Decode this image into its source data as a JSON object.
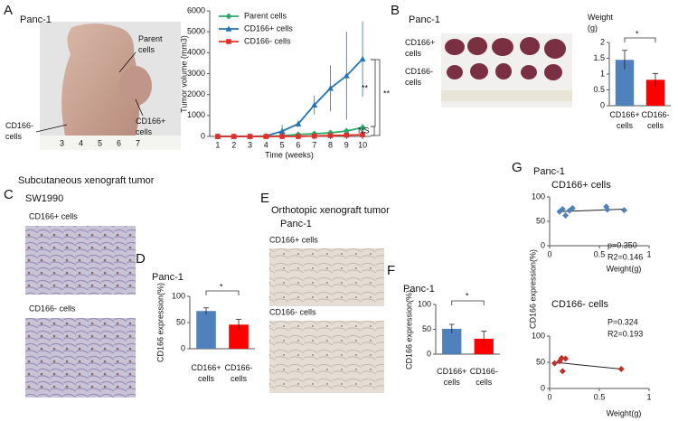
{
  "panels": {
    "A": {
      "letter": "A",
      "title": "Panc-1",
      "labels": [
        "Parent cells",
        "CD166- cells",
        "CD166+ cells"
      ],
      "ruler": [
        "3",
        "4",
        "5",
        "6",
        "7"
      ]
    },
    "B": {
      "letter": "B",
      "title": "Panc-1",
      "labels": [
        "CD166+ cells",
        "CD166- cells"
      ]
    },
    "C": {
      "letter": "C",
      "title": "Subcutaneous xenograft tumor",
      "subtitle": "SW1990",
      "labels": [
        "CD166+ cells",
        "CD166- cells"
      ]
    },
    "D": {
      "letter": "D"
    },
    "E": {
      "letter": "E",
      "title": "Orthotopic xenograft tumor",
      "subtitle": "Panc-1",
      "labels": [
        "CD166+ cells",
        "CD166- cells"
      ]
    },
    "F": {
      "letter": "F"
    },
    "G": {
      "letter": "G",
      "title": "Panc-1",
      "ylabel": "CD166 expression(%)"
    }
  },
  "chart_data": [
    {
      "type": "line",
      "xlabel": "Time (weeks)",
      "ylabel": "Tumor volume  (mm3)",
      "x": [
        1,
        2,
        3,
        4,
        5,
        6,
        7,
        8,
        9,
        10
      ],
      "xlim": [
        0.5,
        10.5
      ],
      "xticks": [
        1,
        2,
        3,
        4,
        5,
        6,
        7,
        8,
        9,
        10
      ],
      "ylim": [
        0,
        6000
      ],
      "yticks": [
        0,
        1000,
        2000,
        3000,
        4000,
        5000,
        6000
      ],
      "legend": "upper left",
      "series": [
        {
          "name": "Parent cells",
          "color": "#2aa86a",
          "marker": "diamond",
          "values": [
            0,
            0,
            0,
            0,
            30,
            90,
            130,
            170,
            260,
            420
          ],
          "errors": [
            0,
            0,
            0,
            0,
            20,
            50,
            100,
            120,
            150,
            200
          ]
        },
        {
          "name": "CD166+ cells",
          "color": "#2275b0",
          "marker": "triangle",
          "values": [
            0,
            0,
            0,
            20,
            250,
            600,
            1500,
            2300,
            2900,
            3700
          ],
          "errors": [
            0,
            0,
            0,
            20,
            300,
            150,
            450,
            1100,
            2100,
            1800
          ]
        },
        {
          "name": "CD166- cells",
          "color": "#e0302a",
          "marker": "square",
          "values": [
            0,
            0,
            0,
            0,
            0,
            0,
            20,
            40,
            60,
            80
          ],
          "errors": [
            0,
            0,
            0,
            0,
            0,
            0,
            10,
            20,
            20,
            30
          ]
        }
      ],
      "annotations": [
        "**",
        "**",
        "NS"
      ]
    },
    {
      "type": "bar",
      "ylabel": "Weight (g)",
      "categories": [
        "CD166+ cells",
        "CD166- cells"
      ],
      "values": [
        1.45,
        0.82
      ],
      "errors": [
        0.3,
        0.2
      ],
      "colors": [
        "#4f81bd",
        "#ff0000"
      ],
      "ylim": [
        0,
        2
      ],
      "yticks": [
        0,
        0.5,
        1,
        1.5,
        2
      ],
      "annotations": [
        "*"
      ]
    },
    {
      "type": "bar",
      "title": "Panc-1",
      "ylabel": "CD166 expression(%)",
      "categories": [
        "CD166+ cells",
        "CD166- cells"
      ],
      "values": [
        72,
        46
      ],
      "errors": [
        6,
        10
      ],
      "colors": [
        "#4f81bd",
        "#ff0000"
      ],
      "ylim": [
        0,
        100
      ],
      "yticks": [
        0,
        50,
        100
      ],
      "annotations": [
        "*"
      ]
    },
    {
      "type": "bar",
      "title": "Panc-1",
      "ylabel": "CD166 expression(%)",
      "categories": [
        "CD166+ cells",
        "CD166- cells"
      ],
      "values": [
        51,
        31
      ],
      "errors": [
        9,
        15
      ],
      "colors": [
        "#4f81bd",
        "#ff0000"
      ],
      "ylim": [
        0,
        100
      ],
      "yticks": [
        0,
        50,
        100
      ],
      "annotations": [
        "*"
      ]
    },
    {
      "type": "scatter",
      "title": "CD166+ cells",
      "xlabel": "Weight(g)",
      "color": "#4f81bd",
      "x": [
        0.1,
        0.13,
        0.16,
        0.2,
        0.23,
        0.57,
        0.58,
        0.75
      ],
      "values": [
        70,
        75,
        62,
        72,
        77,
        80,
        74,
        73
      ],
      "trend": {
        "x": [
          0.1,
          0.75
        ],
        "y": [
          70,
          75
        ]
      },
      "xlim": [
        0,
        1
      ],
      "xticks": [
        0,
        0.5,
        1
      ],
      "ylim": [
        0,
        100
      ],
      "yticks": [
        0,
        50,
        100
      ],
      "annotations": [
        "p=0.350",
        "R2=0.146"
      ]
    },
    {
      "type": "scatter",
      "title": "CD166- cells",
      "xlabel": "Weight(g)",
      "color": "#c0302a",
      "x": [
        0.05,
        0.1,
        0.12,
        0.13,
        0.16,
        0.72
      ],
      "values": [
        48,
        52,
        58,
        33,
        57,
        37
      ],
      "trend": {
        "x": [
          0.05,
          0.72
        ],
        "y": [
          50,
          37
        ]
      },
      "xlim": [
        0,
        1
      ],
      "xticks": [
        0,
        0.5,
        1
      ],
      "ylim": [
        0,
        100
      ],
      "yticks": [
        0,
        50,
        100
      ],
      "annotations": [
        "P=0.324",
        "R2=0.193"
      ]
    }
  ]
}
